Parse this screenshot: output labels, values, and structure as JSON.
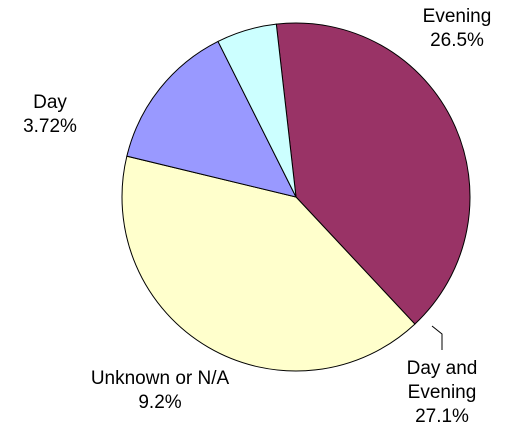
{
  "chart_data": {
    "type": "pie",
    "categories": [
      "Evening",
      "Day and Evening",
      "Unknown or N/A",
      "Day"
    ],
    "values": [
      26.5,
      27.1,
      9.2,
      3.72
    ],
    "value_labels": [
      "26.5%",
      "27.1%",
      "9.2%",
      "3.72%"
    ],
    "colors": [
      "#993366",
      "#ffffcc",
      "#9999ff",
      "#ccffff"
    ]
  }
}
